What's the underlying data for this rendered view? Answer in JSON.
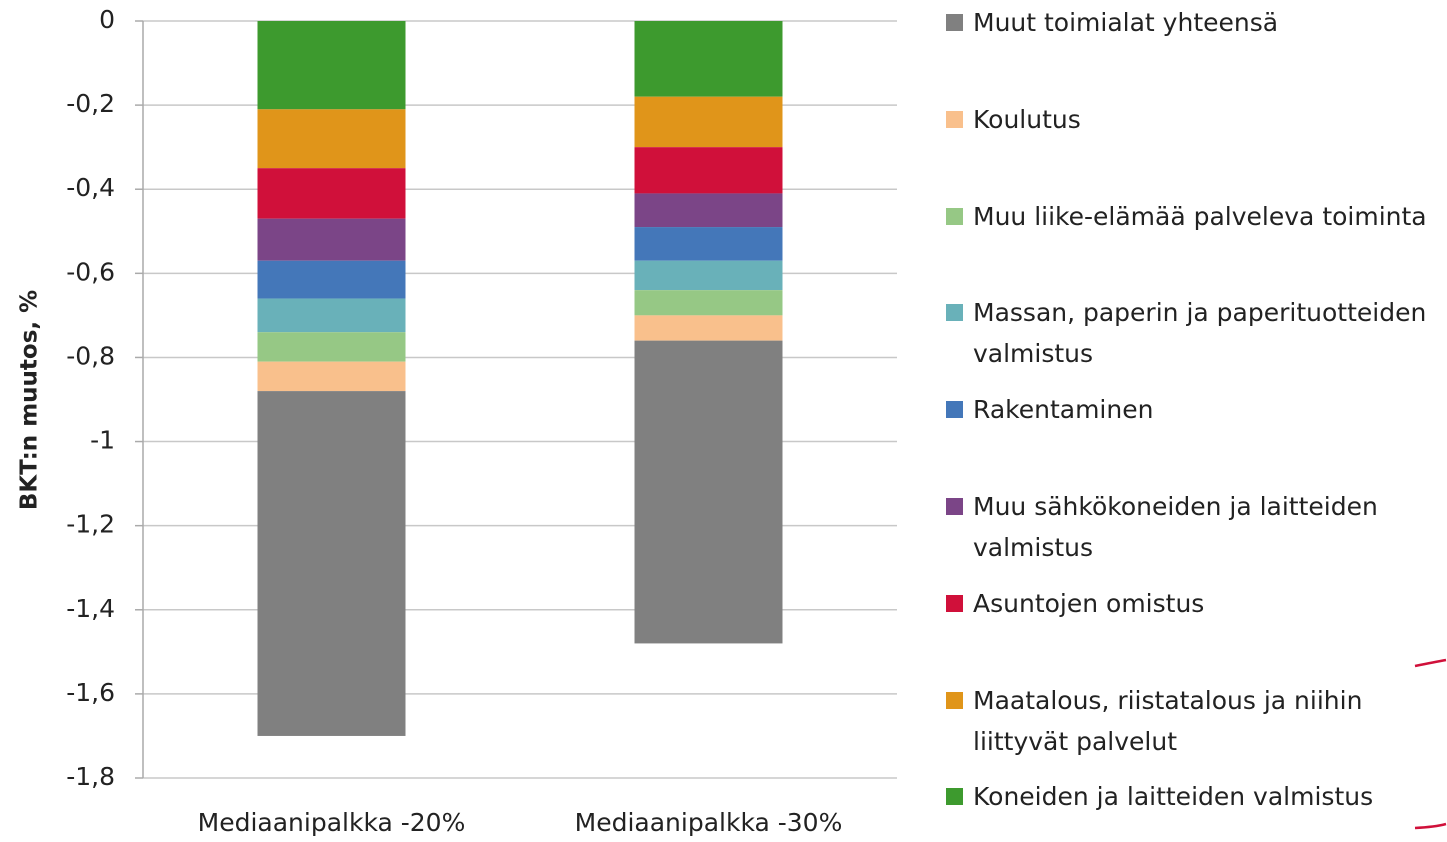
{
  "chart_data": {
    "type": "stacked_bar",
    "ylabel": "BKT:n muutos, %",
    "categories": [
      "Mediaanipalkka -20%",
      "Mediaanipalkka -30%"
    ],
    "series": [
      {
        "name": "Koneiden ja laitteiden valmistus",
        "color": "#3d9a2e",
        "values": [
          -0.21,
          -0.18
        ]
      },
      {
        "name": "Maatalous, riistatalous ja niihin liittyvät palvelut",
        "color": "#e0951a",
        "values": [
          -0.14,
          -0.12
        ]
      },
      {
        "name": "Asuntojen omistus",
        "color": "#d0103a",
        "values": [
          -0.12,
          -0.11
        ]
      },
      {
        "name": "Muu sähkökoneiden ja laitteiden valmistus",
        "color": "#7b4587",
        "values": [
          -0.1,
          -0.08
        ]
      },
      {
        "name": "Rakentaminen",
        "color": "#4477b9",
        "values": [
          -0.09,
          -0.08
        ]
      },
      {
        "name": "Massan, paperin ja paperituotteiden valmistus",
        "color": "#69b1b9",
        "values": [
          -0.08,
          -0.07
        ]
      },
      {
        "name": "Muu liike-elämää palveleva toiminta",
        "color": "#96c885",
        "values": [
          -0.07,
          -0.06
        ]
      },
      {
        "name": "Koulutus",
        "color": "#f9c08c",
        "values": [
          -0.07,
          -0.06
        ]
      },
      {
        "name": "Muut toimialat yhteensä",
        "color": "#808080",
        "values": [
          -0.82,
          -0.72
        ]
      }
    ],
    "ylim": [
      -1.8,
      0
    ],
    "yticks": [
      0,
      {
        "value": -0.2,
        "label": "-0,2"
      },
      {
        "value": -0.4,
        "label": "-0,4"
      },
      {
        "value": -0.6,
        "label": "-0,6"
      },
      {
        "value": -0.8,
        "label": "-0,8"
      },
      -1,
      {
        "value": -1.2,
        "label": "-1,2"
      },
      {
        "value": -1.4,
        "label": "-1,4"
      },
      {
        "value": -1.6,
        "label": "-1,6"
      },
      {
        "value": -1.8,
        "label": "-1,8"
      }
    ],
    "grid": true,
    "legend": "right"
  }
}
